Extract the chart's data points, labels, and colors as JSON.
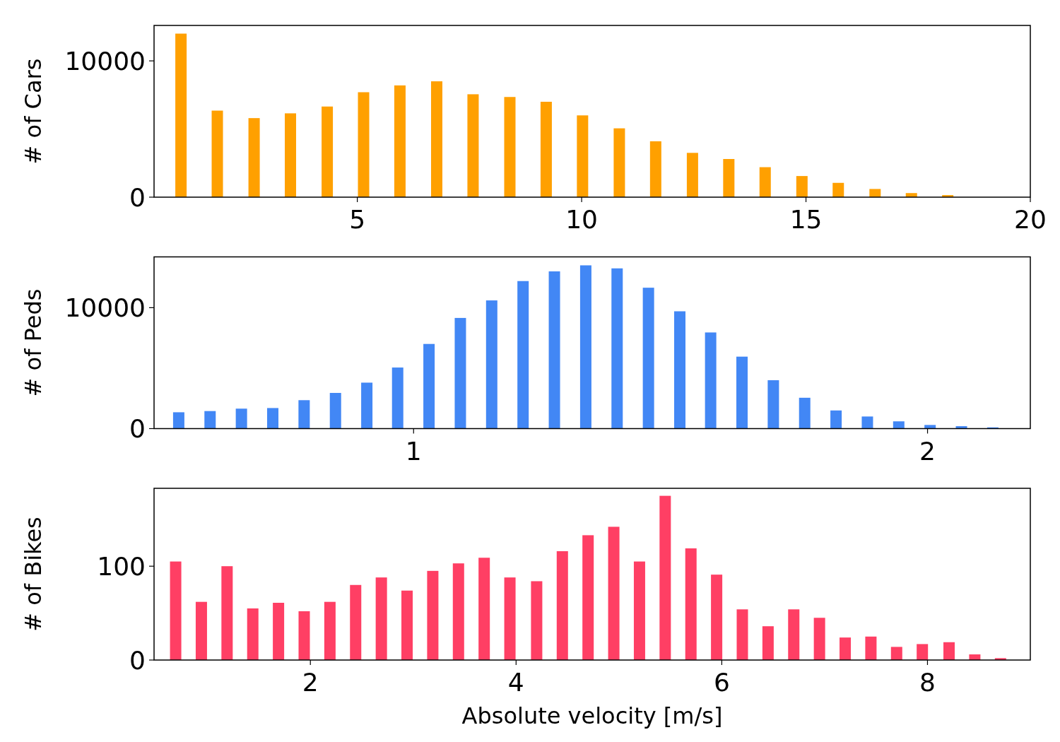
{
  "chart_data": [
    {
      "type": "bar",
      "ylabel": "# of Cars",
      "color": "#ffa000",
      "x": [
        1.07,
        1.88,
        2.7,
        3.51,
        4.33,
        5.14,
        5.95,
        6.77,
        7.58,
        8.4,
        9.21,
        10.02,
        10.84,
        11.65,
        12.47,
        13.28,
        14.09,
        14.91,
        15.72,
        16.54,
        17.35,
        18.16
      ],
      "values": [
        12000,
        6350,
        5800,
        6150,
        6650,
        7700,
        8200,
        8500,
        7550,
        7350,
        7000,
        6000,
        5050,
        4100,
        3250,
        2800,
        2200,
        1550,
        1050,
        600,
        300,
        150
      ],
      "xlim": [
        0.47,
        20
      ],
      "xticks": [
        5,
        10,
        15,
        20
      ],
      "ylim": [
        0,
        12600
      ],
      "yticks": [
        0,
        10000
      ],
      "grid": false
    },
    {
      "type": "bar",
      "ylabel": "# of Peds",
      "color": "#4287f5",
      "x": [
        0.543,
        0.604,
        0.665,
        0.726,
        0.787,
        0.848,
        0.909,
        0.969,
        1.03,
        1.091,
        1.152,
        1.213,
        1.274,
        1.335,
        1.396,
        1.457,
        1.518,
        1.578,
        1.639,
        1.7,
        1.761,
        1.822,
        1.883,
        1.944,
        2.005,
        2.066,
        2.127
      ],
      "values": [
        1350,
        1450,
        1650,
        1700,
        2350,
        2950,
        3800,
        5050,
        7000,
        9150,
        10600,
        12200,
        13000,
        13500,
        13250,
        11650,
        9700,
        7950,
        5950,
        4000,
        2550,
        1500,
        1000,
        600,
        300,
        200,
        100
      ],
      "xlim": [
        0.495,
        2.2
      ],
      "xticks": [
        1,
        2
      ],
      "ylim": [
        0,
        14200
      ],
      "yticks": [
        0,
        10000
      ],
      "grid": false
    },
    {
      "type": "bar",
      "ylabel": "# of Bikes",
      "xlabel": "Absolute velocity [m/s]",
      "color": "#ff3f64",
      "x": [
        0.69,
        0.94,
        1.19,
        1.44,
        1.69,
        1.94,
        2.19,
        2.44,
        2.69,
        2.94,
        3.19,
        3.44,
        3.69,
        3.94,
        4.2,
        4.45,
        4.7,
        4.95,
        5.2,
        5.45,
        5.7,
        5.95,
        6.2,
        6.45,
        6.7,
        6.95,
        7.2,
        7.45,
        7.7,
        7.95,
        8.21,
        8.46,
        8.71
      ],
      "values": [
        105,
        62,
        100,
        55,
        61,
        52,
        62,
        80,
        88,
        74,
        95,
        103,
        109,
        88,
        84,
        116,
        133,
        142,
        105,
        175,
        119,
        91,
        54,
        36,
        54,
        45,
        24,
        25,
        14,
        17,
        19,
        6,
        2
      ],
      "xlim": [
        0.48,
        9
      ],
      "xticks": [
        2,
        4,
        6,
        8
      ],
      "ylim": [
        0,
        183
      ],
      "yticks": [
        0,
        100
      ],
      "grid": false
    }
  ]
}
